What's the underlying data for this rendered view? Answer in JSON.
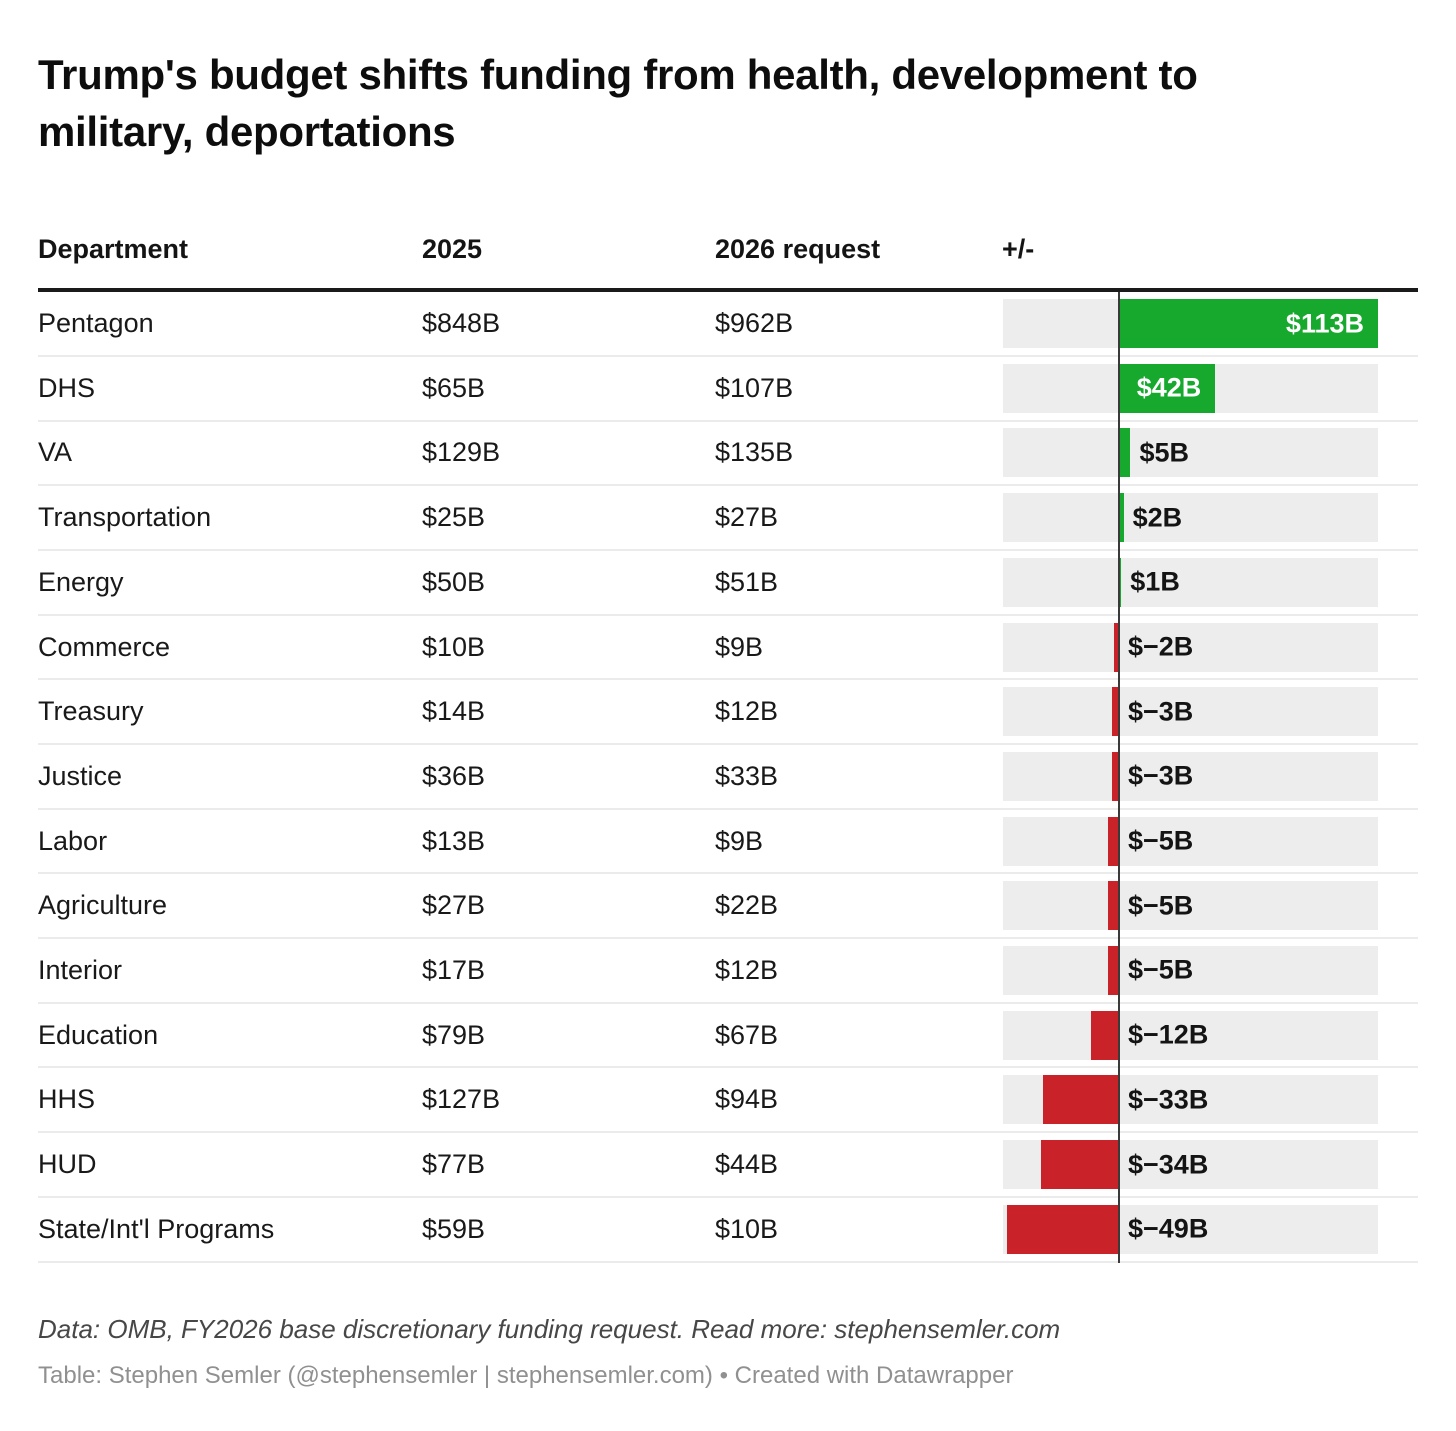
{
  "title": "Trump's budget shifts funding from health, development to military, deportations",
  "columns": {
    "department": "Department",
    "y2025": "2025",
    "y2026": "2026 request",
    "change": "+/-"
  },
  "rows": [
    {
      "department": "Pentagon",
      "y2025": "$848B",
      "y2026": "$962B",
      "change": 113,
      "change_label": "$113B"
    },
    {
      "department": "DHS",
      "y2025": "$65B",
      "y2026": "$107B",
      "change": 42,
      "change_label": "$42B"
    },
    {
      "department": "VA",
      "y2025": "$129B",
      "y2026": "$135B",
      "change": 5,
      "change_label": "$5B"
    },
    {
      "department": "Transportation",
      "y2025": "$25B",
      "y2026": "$27B",
      "change": 2,
      "change_label": "$2B"
    },
    {
      "department": "Energy",
      "y2025": "$50B",
      "y2026": "$51B",
      "change": 1,
      "change_label": "$1B"
    },
    {
      "department": "Commerce",
      "y2025": "$10B",
      "y2026": "$9B",
      "change": -2,
      "change_label": "$−2B"
    },
    {
      "department": "Treasury",
      "y2025": "$14B",
      "y2026": "$12B",
      "change": -3,
      "change_label": "$−3B"
    },
    {
      "department": "Justice",
      "y2025": "$36B",
      "y2026": "$33B",
      "change": -3,
      "change_label": "$−3B"
    },
    {
      "department": "Labor",
      "y2025": "$13B",
      "y2026": "$9B",
      "change": -5,
      "change_label": "$−5B"
    },
    {
      "department": "Agriculture",
      "y2025": "$27B",
      "y2026": "$22B",
      "change": -5,
      "change_label": "$−5B"
    },
    {
      "department": "Interior",
      "y2025": "$17B",
      "y2026": "$12B",
      "change": -5,
      "change_label": "$−5B"
    },
    {
      "department": "Education",
      "y2025": "$79B",
      "y2026": "$67B",
      "change": -12,
      "change_label": "$−12B"
    },
    {
      "department": "HHS",
      "y2025": "$127B",
      "y2026": "$94B",
      "change": -33,
      "change_label": "$−33B"
    },
    {
      "department": "HUD",
      "y2025": "$77B",
      "y2026": "$44B",
      "change": -34,
      "change_label": "$−34B"
    },
    {
      "department": "State/Int'l Programs",
      "y2025": "$59B",
      "y2026": "$10B",
      "change": -49,
      "change_label": "$−49B"
    }
  ],
  "colors": {
    "positive": "#17a82e",
    "negative": "#c92329",
    "track": "#ededed",
    "zero_line": "#3a3a3a",
    "header_rule": "#1a1a1a",
    "separator": "#ebebeb"
  },
  "footer": {
    "source": "Data: OMB, FY2026 base discretionary funding request. Read more: stephensemler.com",
    "credit": "Table: Stephen Semler (@stephensemler | stephensemler.com) • Created with Datawrapper"
  },
  "chart_data": {
    "type": "bar",
    "orientation": "horizontal",
    "title": "Trump's budget shifts funding from health, development to military, deportations",
    "categories": [
      "Pentagon",
      "DHS",
      "VA",
      "Transportation",
      "Energy",
      "Commerce",
      "Treasury",
      "Justice",
      "Labor",
      "Agriculture",
      "Interior",
      "Education",
      "HHS",
      "HUD",
      "State/Int'l Programs"
    ],
    "series": [
      {
        "name": "2025 ($B)",
        "values": [
          848,
          65,
          129,
          25,
          50,
          10,
          14,
          36,
          13,
          27,
          17,
          79,
          127,
          77,
          59
        ]
      },
      {
        "name": "2026 request ($B)",
        "values": [
          962,
          107,
          135,
          27,
          51,
          9,
          12,
          33,
          9,
          22,
          12,
          67,
          94,
          44,
          10
        ]
      },
      {
        "name": "Change ($B)",
        "values": [
          113,
          42,
          5,
          2,
          1,
          -2,
          -3,
          -3,
          -5,
          -5,
          -5,
          -12,
          -33,
          -34,
          -49
        ]
      }
    ],
    "plotted_series": "Change ($B)",
    "xlim": [
      -51,
      113
    ],
    "positive_color": "#17a82e",
    "negative_color": "#c92329",
    "grid": "off",
    "legend": "none",
    "value_labels": "on"
  }
}
